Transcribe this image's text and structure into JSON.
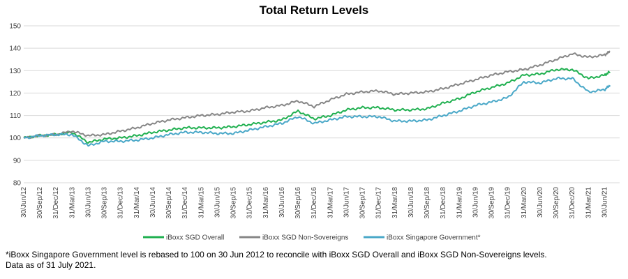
{
  "chart_data": {
    "type": "line",
    "title": "Total Return Levels",
    "xlabel": "",
    "ylabel": "",
    "ylim": [
      80,
      150
    ],
    "yticks": [
      80,
      90,
      100,
      110,
      120,
      130,
      140,
      150
    ],
    "grid": "horizontal",
    "legend": "bottom",
    "x_ticks": [
      "30/Jun/12",
      "30/Sep/12",
      "31/Dec/12",
      "31/Mar/13",
      "30/Jun/13",
      "30/Sep/13",
      "31/Dec/13",
      "31/Mar/14",
      "30/Jun/14",
      "30/Sep/14",
      "31/Dec/14",
      "31/Mar/15",
      "30/Jun/15",
      "30/Sep/15",
      "31/Dec/15",
      "31/Mar/16",
      "30/Jun/16",
      "30/Sep/16",
      "31/Dec/16",
      "31/Mar/17",
      "30/Jun/17",
      "30/Sep/17",
      "31/Dec/17",
      "31/Mar/18",
      "30/Jun/18",
      "30/Sep/18",
      "31/Dec/18",
      "31/Mar/19",
      "30/Jun/19",
      "30/Sep/19",
      "31/Dec/19",
      "31/Mar/20",
      "30/Jun/20",
      "30/Sep/20",
      "31/Dec/20",
      "31/Mar/21",
      "30/Jun/21"
    ],
    "x": [
      "30/Jun/12",
      "30/Sep/12",
      "31/Dec/12",
      "31/Mar/13",
      "30/Jun/13",
      "30/Sep/13",
      "31/Dec/13",
      "31/Mar/14",
      "30/Jun/14",
      "30/Sep/14",
      "31/Dec/14",
      "31/Mar/15",
      "30/Jun/15",
      "30/Sep/15",
      "31/Dec/15",
      "31/Mar/16",
      "30/Jun/16",
      "30/Sep/16",
      "31/Dec/16",
      "31/Mar/17",
      "30/Jun/17",
      "30/Sep/17",
      "31/Dec/17",
      "31/Mar/18",
      "30/Jun/18",
      "30/Sep/18",
      "31/Dec/18",
      "31/Mar/19",
      "30/Jun/19",
      "30/Sep/19",
      "31/Dec/19",
      "31/Mar/20",
      "30/Jun/20",
      "30/Sep/20",
      "31/Dec/20",
      "31/Mar/21",
      "30/Jun/21",
      "31/Jul/21"
    ],
    "series": [
      {
        "name": "iBoxx SGD Overall",
        "color": "#20b050",
        "values": [
          100,
          101,
          101.5,
          102.5,
          98,
          99.5,
          100,
          101,
          102.5,
          103.5,
          104.5,
          104.5,
          104.5,
          105,
          106,
          107,
          108,
          112,
          108.5,
          110,
          112.5,
          113.5,
          113.5,
          112.5,
          112.5,
          113,
          115.5,
          117.5,
          120.5,
          122.5,
          124.5,
          128,
          128.5,
          130.5,
          130.5,
          126.5,
          128,
          129.5
        ]
      },
      {
        "name": "iBoxx SGD Non-Sovereigns",
        "color": "#878787",
        "values": [
          100,
          101,
          101.5,
          103,
          101,
          101.5,
          103,
          104.5,
          106.5,
          108,
          109,
          110,
          110.5,
          111.5,
          112,
          113.5,
          114.5,
          116.5,
          114,
          117,
          119.5,
          120.5,
          121,
          119.5,
          120,
          120.5,
          122,
          124,
          126,
          128,
          129.5,
          130.5,
          132.5,
          135,
          137.5,
          136,
          137,
          138.5
        ]
      },
      {
        "name": "iBoxx Singapore Government*",
        "color": "#4aa8c8",
        "values": [
          100,
          101,
          101.5,
          101.5,
          96.5,
          98.5,
          98.5,
          99,
          100,
          101.5,
          102.5,
          102.5,
          102,
          102,
          103.5,
          105,
          106.5,
          109.5,
          106.5,
          108,
          109.5,
          109.5,
          109.5,
          107.5,
          107.5,
          108,
          110,
          112,
          114.5,
          116,
          118,
          125,
          124.5,
          126.5,
          126.5,
          120.5,
          121.5,
          123.5
        ]
      }
    ]
  },
  "footnote": {
    "line1": "*iBoxx Singapore Government level is rebased to 100 on 30 Jun 2012 to reconcile with iBoxx SGD Overall and iBoxx SGD Non-Sovereigns levels.",
    "line2": "Data as of 31 July 2021."
  }
}
